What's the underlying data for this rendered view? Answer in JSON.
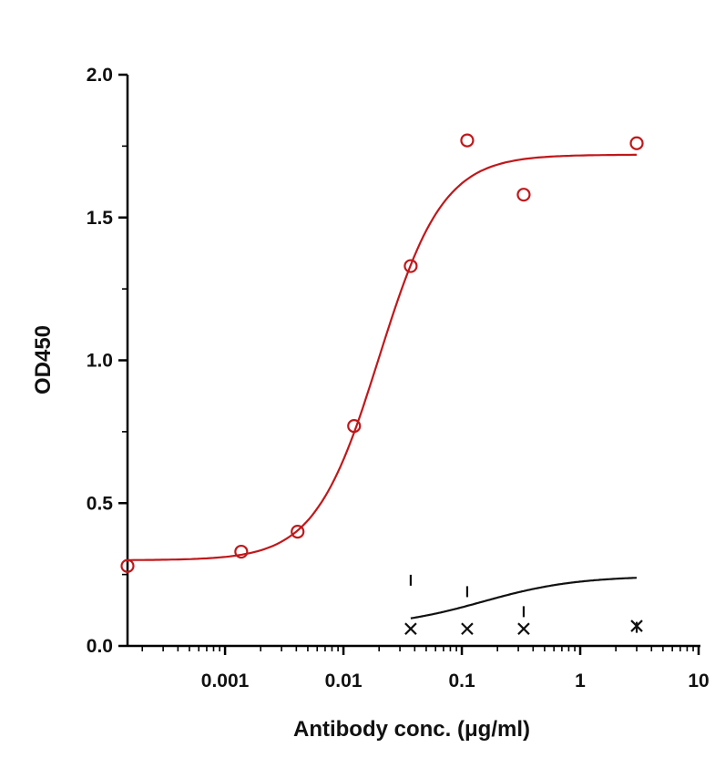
{
  "chart_data": {
    "type": "scatter",
    "xlabel": "Antibody conc. (μg/ml)",
    "ylabel": "OD450",
    "x_scale": "log",
    "xlim": [
      0.00015,
      10
    ],
    "ylim": [
      0,
      2.0
    ],
    "x_ticks": [
      {
        "value": 0.001,
        "label": "0.001"
      },
      {
        "value": 0.01,
        "label": "0.01"
      },
      {
        "value": 0.1,
        "label": "0.1"
      },
      {
        "value": 1,
        "label": "1"
      },
      {
        "value": 10,
        "label": "10"
      }
    ],
    "y_ticks": [
      {
        "value": 0,
        "label": "0.0"
      },
      {
        "value": 0.5,
        "label": "0.5"
      },
      {
        "value": 1.0,
        "label": "1.0"
      },
      {
        "value": 1.5,
        "label": "1.5"
      },
      {
        "value": 2.0,
        "label": "2.0"
      }
    ],
    "grid": false,
    "series": [
      {
        "marker": "circle",
        "color": "#c0181b",
        "points": [
          {
            "x": 0.00015,
            "y": 0.28
          },
          {
            "x": 0.00137,
            "y": 0.33
          },
          {
            "x": 0.0041,
            "y": 0.4
          },
          {
            "x": 0.0123,
            "y": 0.77
          },
          {
            "x": 0.037,
            "y": 1.33
          },
          {
            "x": 0.111,
            "y": 1.77
          },
          {
            "x": 0.333,
            "y": 1.58
          },
          {
            "x": 3.0,
            "y": 1.76
          }
        ],
        "fit": {
          "bottom": 0.3,
          "top": 1.72,
          "ec50": 0.02,
          "hill": 1.6,
          "x_range": [
            0.00015,
            3.0
          ]
        }
      },
      {
        "marker": "cross",
        "color": "#111111",
        "points": [
          {
            "x": 0.037,
            "y": 0.06
          },
          {
            "x": 0.111,
            "y": 0.06
          },
          {
            "x": 0.333,
            "y": 0.06
          },
          {
            "x": 3.0,
            "y": 0.07
          }
        ]
      },
      {
        "marker": "tick",
        "color": "#111111",
        "points": [
          {
            "x": 0.037,
            "y": 0.23
          },
          {
            "x": 0.111,
            "y": 0.19
          },
          {
            "x": 0.333,
            "y": 0.12
          },
          {
            "x": 3.0,
            "y": 0.065
          }
        ],
        "fit": {
          "bottom": 0.065,
          "top": 0.245,
          "ec50": 0.15,
          "hill": 1.1,
          "x_range": [
            0.037,
            3.0
          ]
        }
      }
    ]
  }
}
